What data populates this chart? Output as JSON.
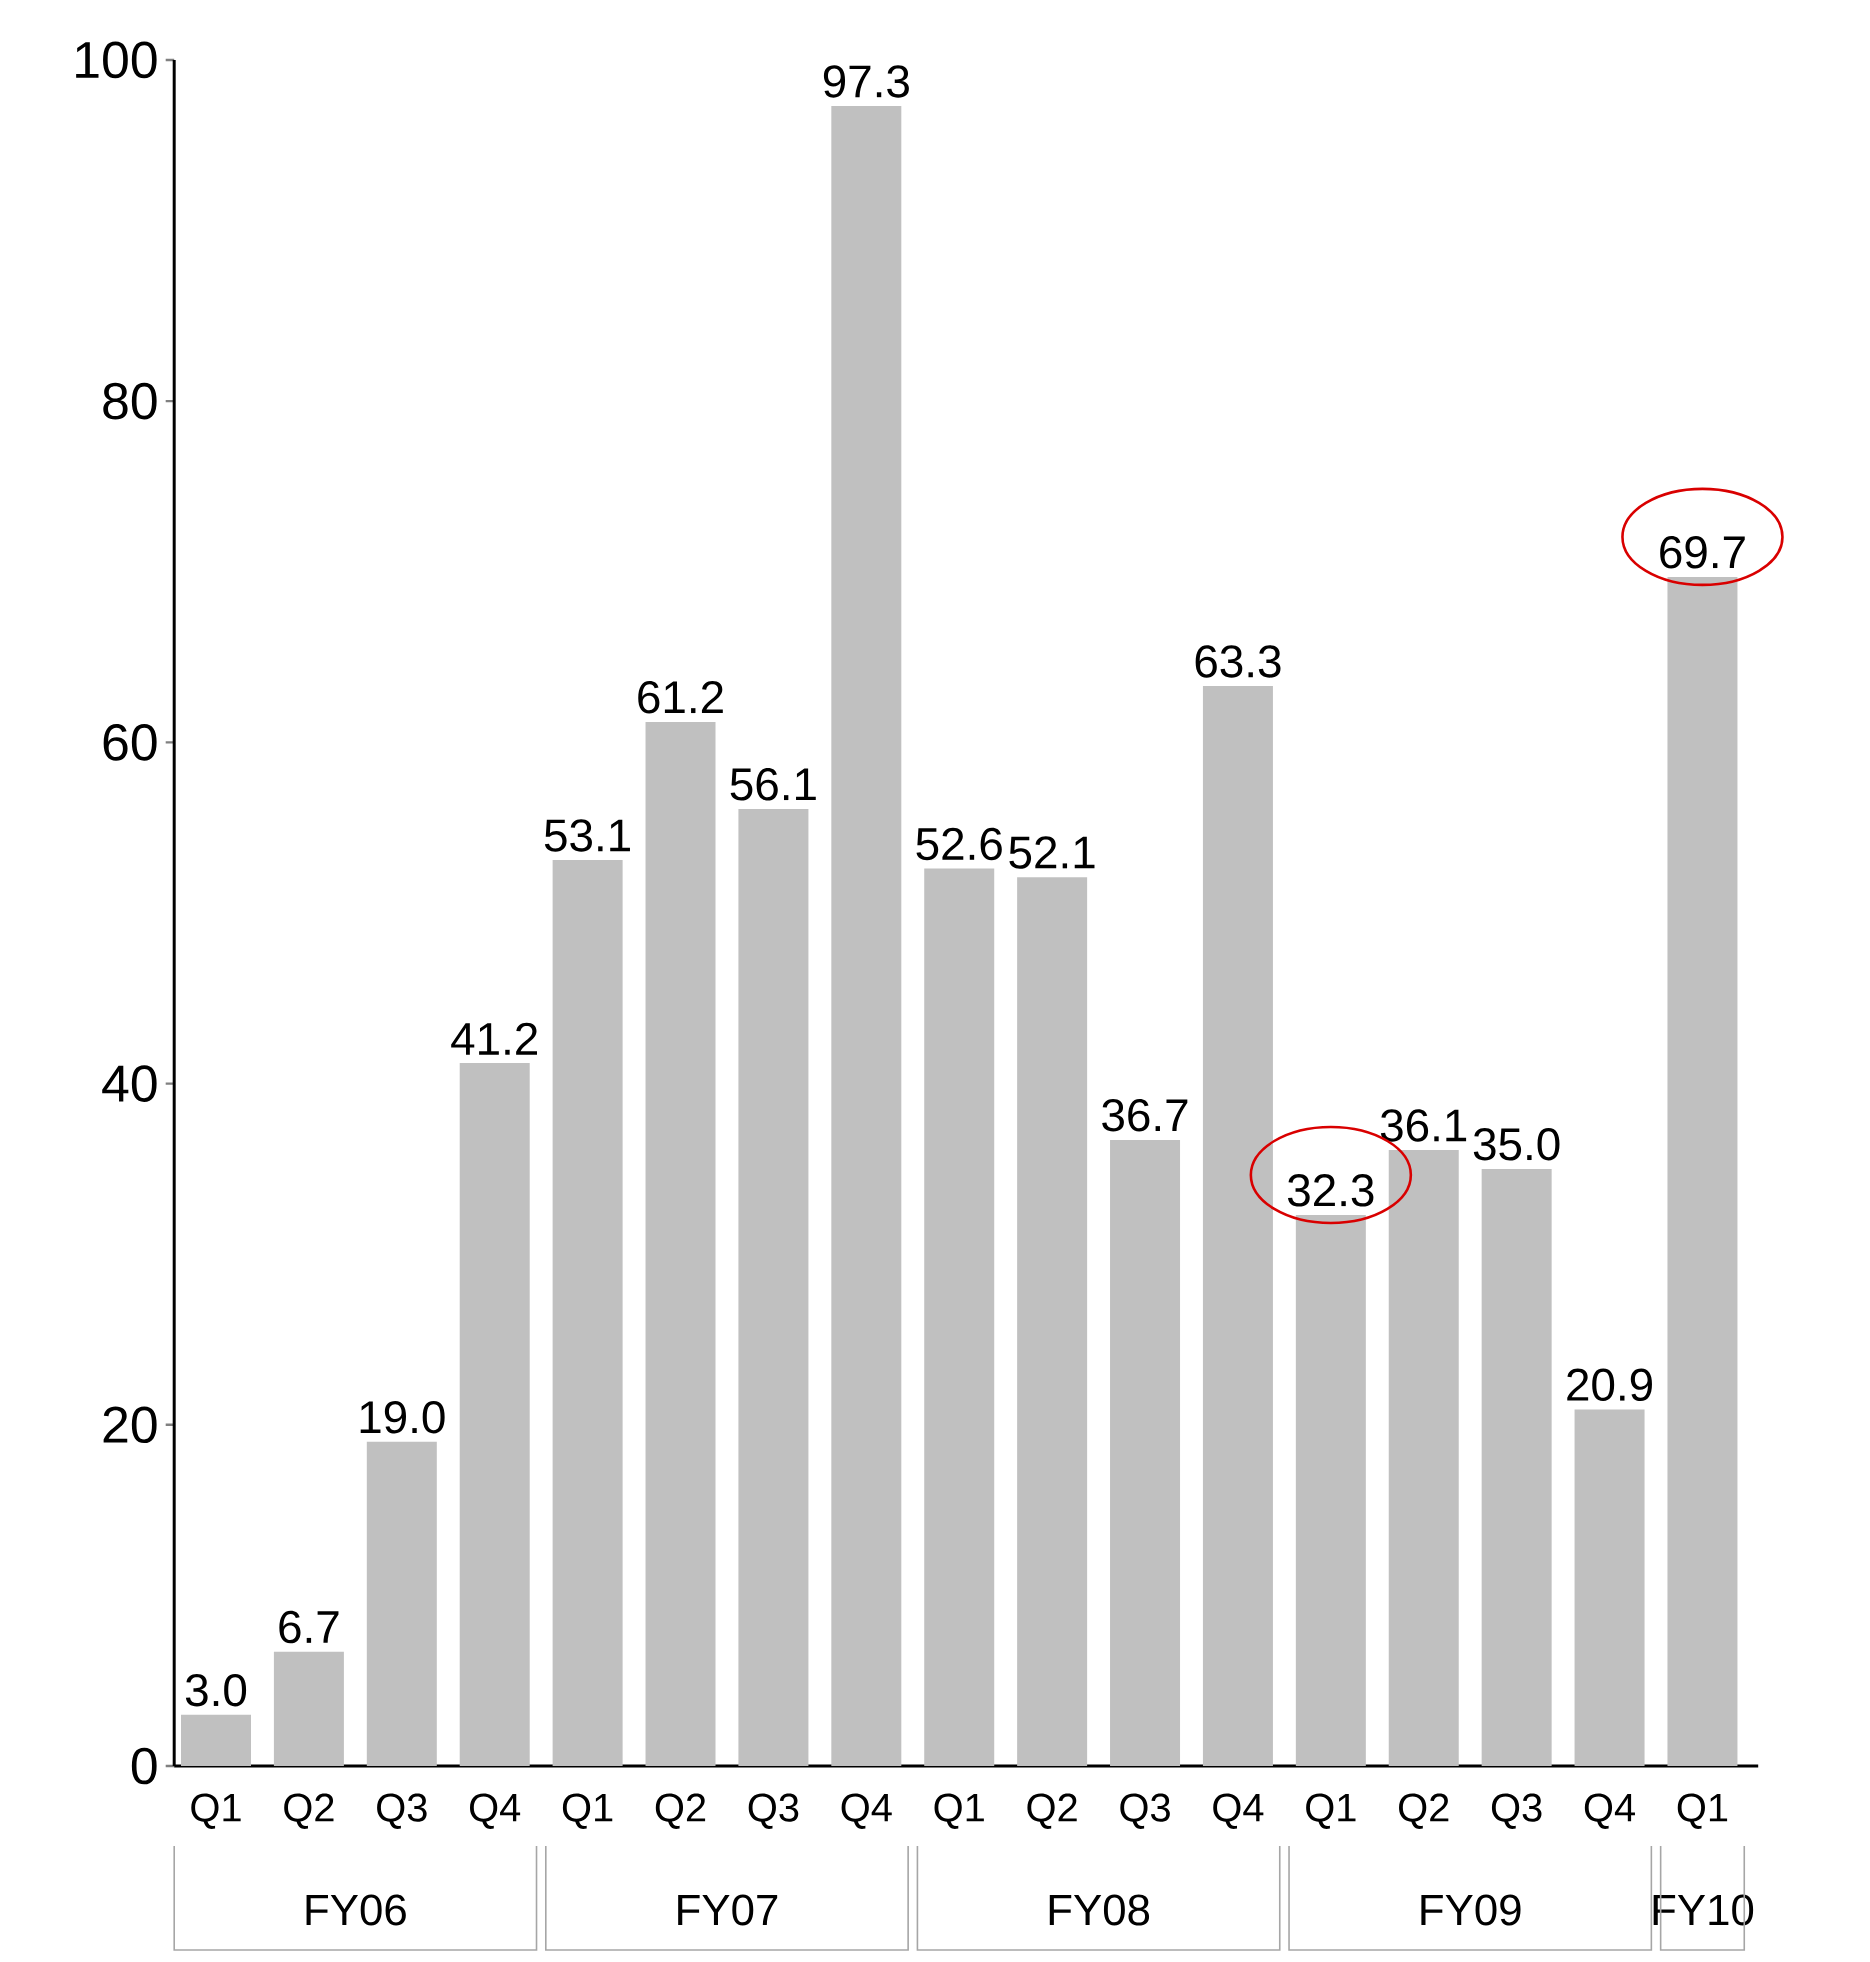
{
  "chart_data": {
    "type": "bar",
    "categories": [
      "Q1",
      "Q2",
      "Q3",
      "Q4",
      "Q1",
      "Q2",
      "Q3",
      "Q4",
      "Q1",
      "Q2",
      "Q3",
      "Q4",
      "Q1",
      "Q2",
      "Q3",
      "Q4",
      "Q1"
    ],
    "values": [
      3.0,
      6.7,
      19.0,
      41.2,
      53.1,
      61.2,
      56.1,
      97.3,
      52.6,
      52.1,
      36.7,
      63.3,
      32.3,
      36.1,
      35.0,
      20.9,
      69.7
    ],
    "value_labels": [
      "3.0",
      "6.7",
      "19.0",
      "41.2",
      "53.1",
      "61.2",
      "56.1",
      "97.3",
      "52.6",
      "52.1",
      "36.7",
      "63.3",
      "32.3",
      "36.1",
      "35.0",
      "20.9",
      "69.7"
    ],
    "color": "#c0c0c0",
    "ylim": [
      0,
      100
    ],
    "yticks": [
      0,
      20,
      40,
      60,
      80,
      100
    ],
    "annotations": [
      "FY06",
      "FY07",
      "FY08",
      "FY09",
      "FY10"
    ]
  }
}
